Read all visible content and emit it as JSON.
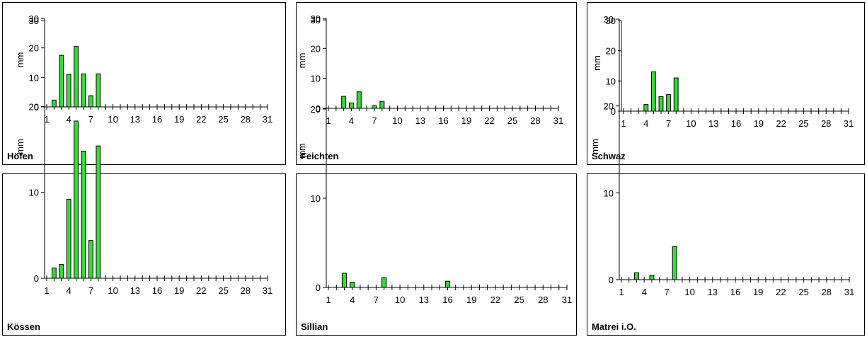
{
  "chart_data": [
    {
      "type": "bar",
      "station": "Höfen",
      "ylabel": "mm",
      "ylim": [
        0,
        30
      ],
      "yticks": [
        0,
        10,
        20,
        30
      ],
      "xlim": [
        1,
        31
      ],
      "xticks": [
        1,
        4,
        7,
        10,
        13,
        16,
        19,
        22,
        25,
        28,
        31
      ],
      "x": [
        2,
        3,
        4,
        5,
        6,
        7,
        8
      ],
      "values": [
        2.3,
        17.5,
        11.0,
        20.5,
        11.2,
        3.8,
        11.2
      ],
      "bar_color": "#33dd33"
    },
    {
      "type": "bar",
      "station": "Feichten",
      "ylabel": "mm",
      "ylim": [
        0,
        30
      ],
      "yticks": [
        0,
        10,
        20,
        30
      ],
      "xlim": [
        1,
        31
      ],
      "xticks": [
        1,
        4,
        7,
        10,
        13,
        16,
        19,
        22,
        25,
        28,
        31
      ],
      "x": [
        3,
        4,
        5,
        7,
        8
      ],
      "values": [
        4.0,
        1.8,
        5.5,
        0.9,
        2.3
      ],
      "bar_color": "#33dd33"
    },
    {
      "type": "bar",
      "station": "Schwaz",
      "ylabel": "mm",
      "ylim": [
        0,
        30
      ],
      "yticks": [
        0,
        10,
        20,
        30
      ],
      "xlim": [
        1,
        31
      ],
      "xticks": [
        1,
        4,
        7,
        10,
        13,
        16,
        19,
        22,
        25,
        28,
        31
      ],
      "x": [
        4,
        5,
        6,
        7,
        8
      ],
      "values": [
        2.2,
        13.0,
        4.8,
        5.5,
        11.0
      ],
      "bar_color": "#33dd33"
    },
    {
      "type": "bar",
      "station": "Kössen",
      "ylabel": "mm",
      "ylim": [
        0,
        30
      ],
      "yticks": [
        0,
        10,
        20,
        30
      ],
      "xlim": [
        1,
        31
      ],
      "xticks": [
        1,
        4,
        7,
        10,
        13,
        16,
        19,
        22,
        25,
        28,
        31
      ],
      "x": [
        2,
        3,
        4,
        5,
        6,
        7,
        8
      ],
      "values": [
        1.2,
        1.6,
        9.2,
        18.3,
        14.8,
        4.4,
        15.4
      ],
      "bar_color": "#33dd33"
    },
    {
      "type": "bar",
      "station": "Sillian",
      "ylabel": "mm",
      "ylim": [
        0,
        30
      ],
      "yticks": [
        0,
        10,
        20,
        30
      ],
      "xlim": [
        1,
        31
      ],
      "xticks": [
        1,
        4,
        7,
        10,
        13,
        16,
        19,
        22,
        25,
        28,
        31
      ],
      "x": [
        3,
        4,
        8,
        16
      ],
      "values": [
        1.6,
        0.6,
        1.1,
        0.7
      ],
      "bar_color": "#33dd33"
    },
    {
      "type": "bar",
      "station": "Matrei i.O.",
      "ylabel": "mm",
      "ylim": [
        0,
        30
      ],
      "yticks": [
        0,
        10,
        20,
        30
      ],
      "xlim": [
        1,
        31
      ],
      "xticks": [
        1,
        4,
        7,
        10,
        13,
        16,
        19,
        22,
        25,
        28,
        31
      ],
      "x": [
        3,
        5,
        8
      ],
      "values": [
        0.8,
        0.5,
        3.8
      ],
      "bar_color": "#33dd33"
    }
  ]
}
